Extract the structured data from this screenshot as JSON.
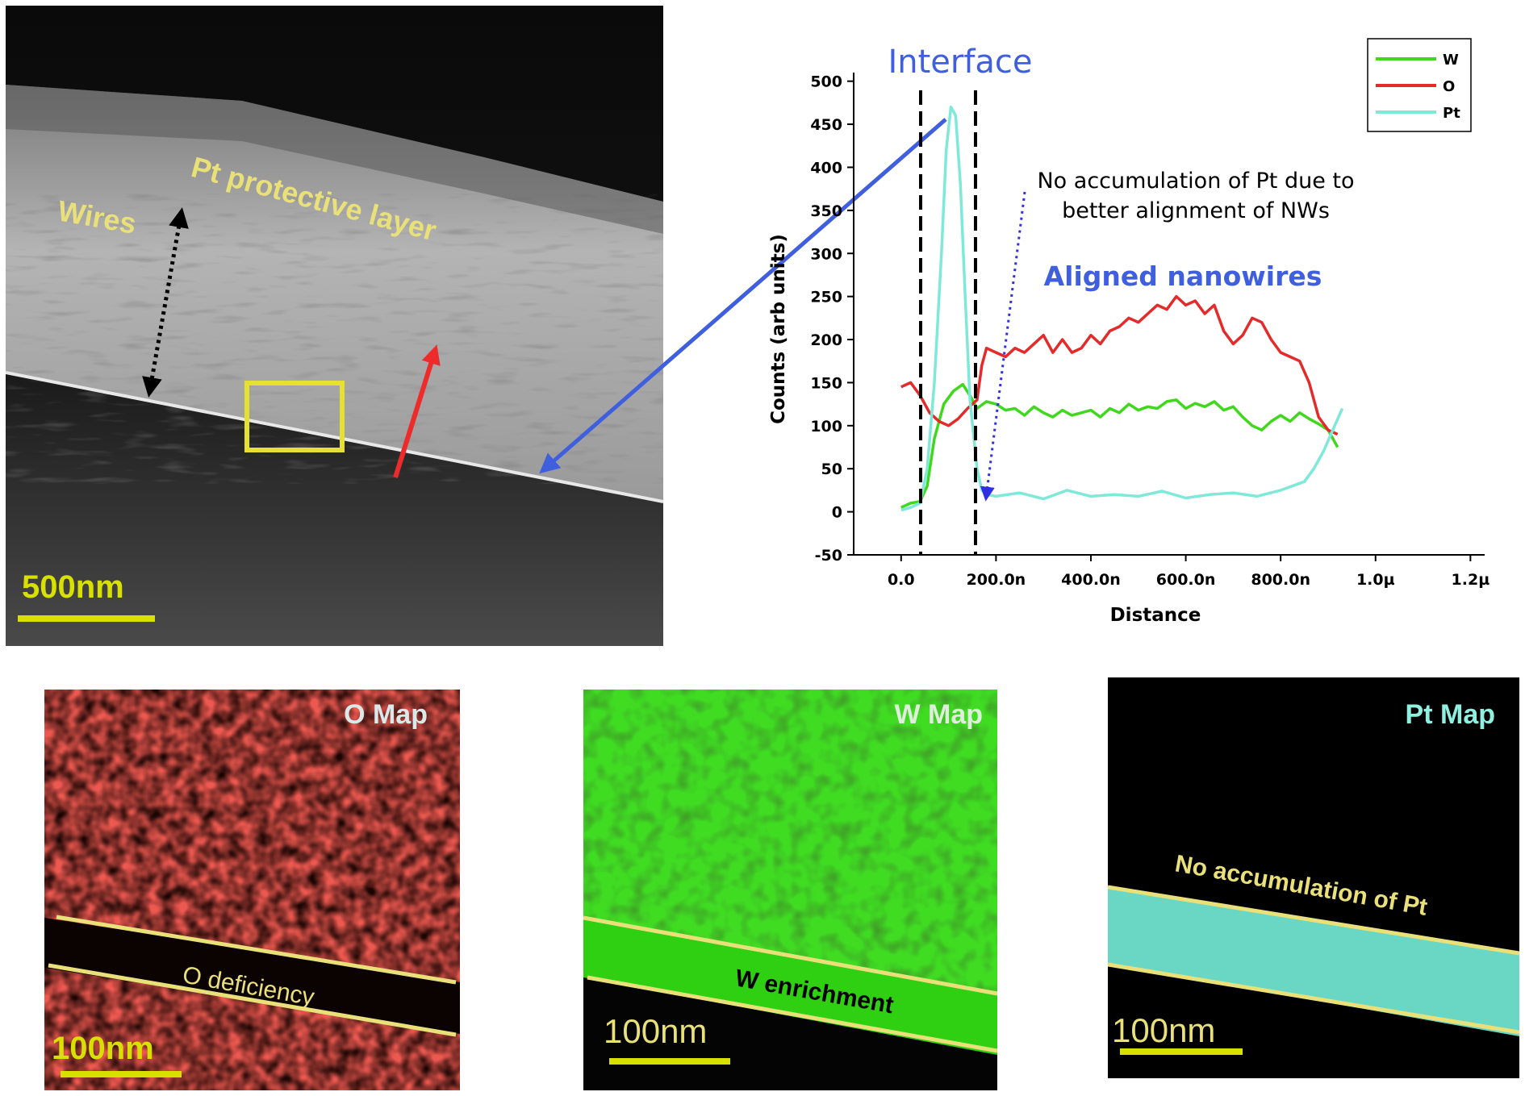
{
  "sem_panel": {
    "label_wires": "Wires",
    "label_pt_layer": "Pt protective layer",
    "scale_bar": "500nm"
  },
  "chart_data": {
    "type": "line",
    "title": "",
    "xlabel": "Distance",
    "ylabel": "Counts (arb units)",
    "x_ticks": [
      "0.0",
      "200.0n",
      "400.0n",
      "600.0n",
      "800.0n",
      "1.0µ",
      "1.2µ"
    ],
    "x_tick_values_nm": [
      0,
      200,
      400,
      600,
      800,
      1000,
      1200
    ],
    "xlim_nm": [
      -100,
      1230
    ],
    "y_ticks": [
      "-50",
      "0",
      "50",
      "100",
      "150",
      "200",
      "250",
      "300",
      "350",
      "400",
      "450",
      "500"
    ],
    "ylim": [
      -50,
      510
    ],
    "x_unit": "nm",
    "legend_position": "top-right",
    "grid": false,
    "series": [
      {
        "name": "W",
        "color": "#3fd81c",
        "x": [
          0,
          20,
          40,
          55,
          70,
          90,
          110,
          130,
          145,
          160,
          180,
          200,
          220,
          240,
          260,
          280,
          300,
          320,
          340,
          360,
          380,
          400,
          420,
          440,
          460,
          480,
          500,
          520,
          540,
          560,
          580,
          600,
          620,
          640,
          660,
          680,
          700,
          720,
          740,
          760,
          780,
          800,
          820,
          840,
          860,
          880,
          900,
          920
        ],
        "y": [
          5,
          10,
          12,
          30,
          85,
          125,
          140,
          148,
          135,
          120,
          128,
          125,
          118,
          120,
          112,
          122,
          115,
          110,
          118,
          112,
          115,
          118,
          110,
          120,
          115,
          125,
          118,
          122,
          120,
          128,
          130,
          120,
          126,
          122,
          128,
          118,
          122,
          110,
          100,
          95,
          105,
          112,
          105,
          115,
          108,
          102,
          95,
          75
        ]
      },
      {
        "name": "O",
        "color": "#e52a2a",
        "x": [
          0,
          20,
          40,
          60,
          80,
          100,
          120,
          140,
          160,
          170,
          180,
          200,
          220,
          240,
          260,
          280,
          300,
          320,
          340,
          360,
          380,
          400,
          420,
          440,
          460,
          480,
          500,
          520,
          540,
          560,
          580,
          600,
          620,
          640,
          660,
          680,
          700,
          720,
          740,
          760,
          780,
          800,
          820,
          840,
          860,
          880,
          900,
          920
        ],
        "y": [
          145,
          150,
          135,
          115,
          105,
          100,
          108,
          120,
          130,
          170,
          190,
          185,
          180,
          190,
          185,
          195,
          205,
          185,
          200,
          185,
          190,
          205,
          195,
          210,
          215,
          225,
          220,
          230,
          240,
          235,
          250,
          240,
          245,
          230,
          240,
          210,
          195,
          205,
          225,
          220,
          200,
          185,
          180,
          175,
          150,
          110,
          95,
          90
        ]
      },
      {
        "name": "Pt",
        "color": "#7fe9d9",
        "x": [
          0,
          20,
          40,
          55,
          70,
          85,
          95,
          105,
          115,
          125,
          135,
          145,
          160,
          170,
          180,
          200,
          250,
          300,
          350,
          400,
          450,
          500,
          550,
          600,
          650,
          700,
          750,
          800,
          850,
          870,
          890,
          910,
          930
        ],
        "y": [
          2,
          5,
          10,
          50,
          150,
          300,
          420,
          470,
          460,
          380,
          250,
          130,
          50,
          25,
          20,
          18,
          22,
          15,
          25,
          18,
          20,
          18,
          24,
          16,
          20,
          22,
          18,
          25,
          35,
          50,
          70,
          95,
          120
        ]
      }
    ],
    "annotations": {
      "interface": "Interface",
      "no_accumulation": "No accumulation of Pt due to",
      "no_accumulation_line2": "better alignment of NWs",
      "aligned": "Aligned nanowires"
    }
  },
  "maps": {
    "o_map": {
      "title": "O Map",
      "label": "O deficiency",
      "scale": "100nm"
    },
    "w_map": {
      "title": "W Map",
      "label": "W enrichment",
      "scale": "100nm"
    },
    "pt_map": {
      "title": "Pt Map",
      "label": "No accumulation of Pt",
      "scale": "100nm"
    }
  },
  "colors": {
    "label_yellow": "#e9e07a",
    "scale_yellow": "#d8e000",
    "annotation_blue": "#3f5fde",
    "o_red": "#d9261c",
    "w_green": "#38d61c",
    "pt_cyan": "#7fe9d9"
  }
}
